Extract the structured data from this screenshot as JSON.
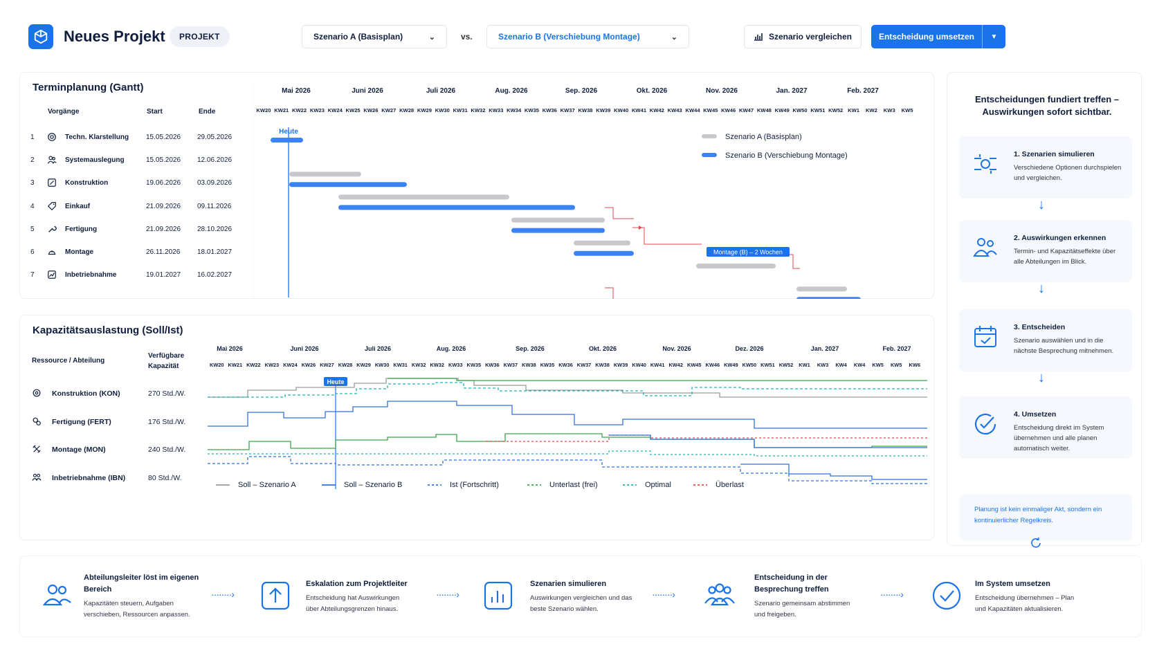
{
  "header": {
    "project_title": "Neues Projekt",
    "project_badge": "PROJEKT",
    "scenario_a": "Szenario A (Basisplan)",
    "vs": "vs.",
    "scenario_b": "Szenario B (Verschiebung Montage)",
    "compare_button": "Szenario vergleichen",
    "decision_button": "Entscheidung umsetzen",
    "colors": {
      "accent": "#1a73e8",
      "scenario_a": "#c8c8cc",
      "scenario_b": "#3b82f6",
      "dependency": "#e0474c"
    }
  },
  "gantt": {
    "title": "Terminplanung (Gantt)",
    "columns": {
      "task": "Vorgänge",
      "start": "Start",
      "end": "Ende"
    },
    "months": [
      "Mai 2026",
      "Juni 2026",
      "Juli 2026",
      "Aug. 2026",
      "Sep. 2026",
      "Okt. 2026",
      "Nov. 2026",
      "Jan. 2027",
      "Feb. 2027"
    ],
    "weeks": [
      "KW20",
      "KW21",
      "KW22",
      "KW23",
      "KW24",
      "KW25",
      "KW26",
      "KW27",
      "KW28",
      "KW29",
      "KW30",
      "KW31",
      "KW32",
      "KW33",
      "KW34",
      "KW35",
      "KW36",
      "KW37",
      "KW38",
      "KW39",
      "KW40",
      "KW41",
      "KW42",
      "KW43",
      "KW44",
      "KW45",
      "KW46",
      "KW47",
      "KW48",
      "KW49",
      "KW50",
      "KW51",
      "KW52",
      "KW1",
      "KW2",
      "KW3",
      "KW5"
    ],
    "today_label": "Heute",
    "tasks": [
      {
        "nr": "1",
        "name": "Techn. Klarstellung",
        "start": "15.05.2026",
        "end": "29.05.2026",
        "icon": "target-icon"
      },
      {
        "nr": "2",
        "name": "Systemauslegung",
        "start": "15.05.2026",
        "end": "12.06.2026",
        "icon": "users-icon"
      },
      {
        "nr": "3",
        "name": "Konstruktion",
        "start": "19.06.2026",
        "end": "03.09.2026",
        "icon": "pencil-icon"
      },
      {
        "nr": "4",
        "name": "Einkauf",
        "start": "21.09.2026",
        "end": "09.11.2026",
        "icon": "tag-icon"
      },
      {
        "nr": "5",
        "name": "Fertigung",
        "start": "21.09.2026",
        "end": "28.10.2026",
        "icon": "wrench-icon"
      },
      {
        "nr": "6",
        "name": "Montage",
        "start": "26.11.2026",
        "end": "18.01.2027",
        "icon": "hardhat-icon"
      },
      {
        "nr": "7",
        "name": "Inbetriebnahme",
        "start": "19.01.2027",
        "end": "16.02.2027",
        "icon": "chart-icon"
      }
    ],
    "legend": {
      "a": "Szenario A (Basisplan)",
      "b": "Szenario B (Verschiebung Montage)"
    },
    "callout": "Montage (B) – 2 Wochen"
  },
  "capacity": {
    "title": "Kapazitätsauslastung (Soll/Ist)",
    "col_resource": "Ressource / Abteilung",
    "col_capacity": "Verfügbare Kapazität",
    "months": [
      "Mai 2026",
      "Juni 2026",
      "Juli 2026",
      "Aug. 2026",
      "Sep. 2026",
      "Okt. 2026",
      "Nov. 2026",
      "Dez. 2026",
      "Jan. 2027",
      "Feb. 2027"
    ],
    "weeks": [
      "KW20",
      "KW21",
      "KW22",
      "KW23",
      "KW24",
      "KW26",
      "KW27",
      "KW28",
      "KW29",
      "KW30",
      "KW31",
      "KW32",
      "KW32",
      "KW33",
      "KW35",
      "KW36",
      "KW37",
      "KW38",
      "KW35",
      "KW36",
      "KW37",
      "KW38",
      "KW39",
      "KW40",
      "KW41",
      "KW42",
      "KW45",
      "KW46",
      "KW49",
      "KW50",
      "KW51",
      "KW52",
      "KW1",
      "KW3",
      "KW4",
      "KW4",
      "KW5",
      "KW5",
      "KW6"
    ],
    "today_label": "Heute",
    "rows": [
      {
        "name": "Konstruktion (KON)",
        "capacity": "270 Std./W.",
        "icon": "gear-icon"
      },
      {
        "name": "Fertigung (FERT)",
        "capacity": "176 Std./W.",
        "icon": "cogs-icon"
      },
      {
        "name": "Montage (MON)",
        "capacity": "240 Std./W.",
        "icon": "tools-icon"
      },
      {
        "name": "Inbetriebnahme (IBN)",
        "capacity": "80 Std./W.",
        "icon": "team-icon"
      }
    ],
    "legend": [
      "Soll – Szenario A",
      "Soll – Szenario B",
      "Ist (Fortschritt)",
      "Unterlast (frei)",
      "Optimal",
      "Überlast"
    ],
    "legend_colors": [
      "#9a9a9a",
      "#2f6fde",
      "#2f6fde",
      "#3aa34a",
      "#20b2aa",
      "#e0474c"
    ]
  },
  "process": {
    "title": "Entscheidungen fundiert treffen – Auswirkungen sofort sichtbar.",
    "steps": [
      {
        "title": "1. Szenarien simulieren",
        "desc": "Verschiedene Optionen durchspielen und vergleichen.",
        "icon": "simulate-icon"
      },
      {
        "title": "2. Auswirkungen erkennen",
        "desc": "Termin- und Kapazitätseffekte über alle Abteilungen im Blick.",
        "icon": "people-icon"
      },
      {
        "title": "3. Entscheiden",
        "desc": "Szenario auswählen und in die nächste Besprechung mitnehmen.",
        "icon": "calendar-check-icon"
      },
      {
        "title": "4. Umsetzen",
        "desc": "Entscheidung direkt im System übernehmen und alle planen automatisch weiter.",
        "icon": "check-circle-icon"
      }
    ],
    "note": "Planung ist kein einmaliger Akt, sondern ein kontinuierlicher Regelkreis."
  },
  "flow": [
    {
      "title": "Abteilungsleiter löst im eigenen Bereich",
      "desc": "Kapazitäten steuern, Aufgaben verschieben, Ressourcen anpassen.",
      "icon": "users-icon"
    },
    {
      "title": "Eskalation zum Projektleiter",
      "desc": "Entscheidung hat Auswirkungen über Abteilungsgrenzen hinaus.",
      "icon": "upload-icon"
    },
    {
      "title": "Szenarien simulieren",
      "desc": "Auswirkungen vergleichen und das beste Szenario wählen.",
      "icon": "bar-chart-icon"
    },
    {
      "title": "Entscheidung in der Besprechung treffen",
      "desc": "Szenario gemeinsam abstimmen und freigeben.",
      "icon": "group-icon"
    },
    {
      "title": "Im System umsetzen",
      "desc": "Entscheidung übernehmen – Plan und Kapazitäten aktualisieren.",
      "icon": "check-circle-icon"
    }
  ]
}
